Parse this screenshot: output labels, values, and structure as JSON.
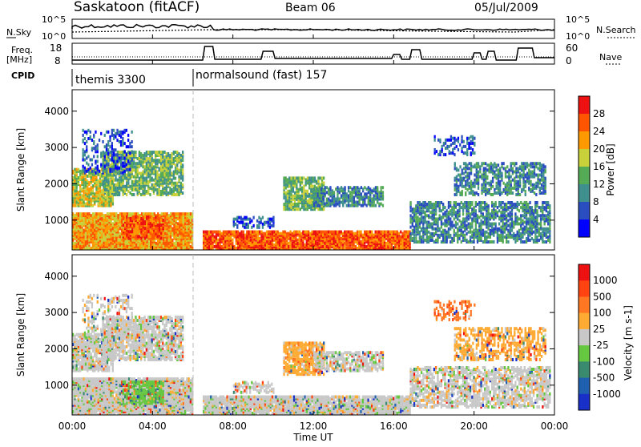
{
  "header": {
    "station": "Saskatoon (fitACF)",
    "beam": "Beam 06",
    "date": "05/Jul/2009"
  },
  "top_panels": {
    "sky_label": "N.Sky",
    "search_label": "N.Search",
    "sky_ticks": [
      "10^5",
      "10^0"
    ],
    "search_ticks": [
      "10^5",
      "10^0"
    ],
    "freq_label_1": "Freq.",
    "freq_label_2": "[MHz]",
    "freq_ticks": [
      "18",
      "8"
    ],
    "nave_label": "Nave",
    "nave_ticks": [
      "60",
      "0"
    ],
    "cpid_label": "CPID",
    "cpid_segments": [
      "themis 3300",
      "normalsound (fast) 157"
    ]
  },
  "chart_data": [
    {
      "type": "heatmap",
      "name": "power",
      "ylabel": "Slant Range [km]",
      "ylim": [
        180,
        4590
      ],
      "yticks": [
        "1000",
        "2000",
        "3000",
        "4000"
      ],
      "colorbar_label": "Power [dB]",
      "colorbar_ticks": [
        "28",
        "24",
        "20",
        "16",
        "12",
        "8",
        "4"
      ],
      "colorbar_colors": [
        "#0000ff",
        "#2a4dc0",
        "#3f8f8f",
        "#55aa55",
        "#c8d03a",
        "#ff9900",
        "#ff5500",
        "#ee1111"
      ]
    },
    {
      "type": "heatmap",
      "name": "velocity",
      "ylabel": "Slant Range [km]",
      "ylim": [
        180,
        4590
      ],
      "yticks": [
        "1000",
        "2000",
        "3000",
        "4000"
      ],
      "colorbar_label": "Velocity [m s-1]",
      "colorbar_ticks": [
        "1000",
        "500",
        "100",
        "25",
        "-25",
        "-100",
        "-500",
        "-1000"
      ],
      "colorbar_colors": [
        "#1830c8",
        "#2060b0",
        "#3a8a70",
        "#66c840",
        "#c8c8c8",
        "#ffaa33",
        "#ff7722",
        "#ff4411",
        "#ee1111"
      ]
    }
  ],
  "x_axis": {
    "label": "Time UT",
    "ticks": [
      "00:00",
      "04:00",
      "08:00",
      "12:00",
      "16:00",
      "20:00",
      "00:00"
    ]
  }
}
